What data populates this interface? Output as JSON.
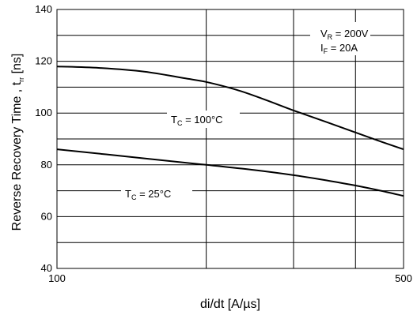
{
  "chart_data": {
    "type": "line",
    "x_scale": "log",
    "xlim": [
      100,
      500
    ],
    "ylim": [
      40,
      140
    ],
    "grid": true,
    "xlabel": "di/dt [A/µs]",
    "ylabel": "Reverse Recovery Time , t",
    "ylabel_sub": "rr",
    "ylabel_unit": " [ns]",
    "x_ticks": [
      100,
      500
    ],
    "x_tick_labels": [
      "100",
      "500"
    ],
    "x_gridlines": [
      200,
      300,
      400
    ],
    "y_ticks": [
      40,
      60,
      80,
      100,
      120,
      140
    ],
    "y_tick_labels": [
      "40",
      "60",
      "80",
      "100",
      "120",
      "140"
    ],
    "y_gridlines": [
      40,
      50,
      60,
      70,
      80,
      90,
      100,
      110,
      120,
      130,
      140
    ],
    "series": [
      {
        "label_main": "T",
        "label_sub": "C",
        "label_rest": " = 100°C",
        "x": [
          100,
          120,
          150,
          180,
          200,
          230,
          260,
          300,
          350,
          400,
          450,
          500
        ],
        "y": [
          118,
          117.5,
          116,
          113.5,
          112,
          109,
          105.5,
          101,
          96.5,
          92.5,
          89,
          86
        ]
      },
      {
        "label_main": "T",
        "label_sub": "C",
        "label_rest": " = 25°C",
        "x": [
          100,
          150,
          200,
          250,
          300,
          350,
          400,
          450,
          500
        ],
        "y": [
          86,
          82.5,
          80,
          78,
          76,
          74,
          72,
          70,
          68
        ]
      }
    ],
    "conditions": [
      {
        "main": "V",
        "sub": "R",
        "rest": " = 200V"
      },
      {
        "main": "I",
        "sub": "F",
        "rest": " = 20A"
      }
    ]
  }
}
